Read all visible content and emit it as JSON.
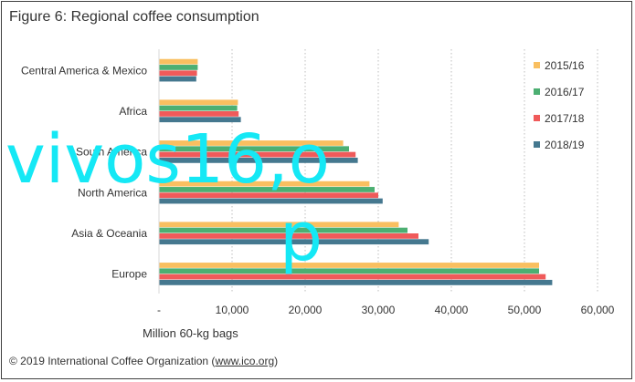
{
  "figure": {
    "title": "Figure 6: Regional coffee consumption",
    "credit_prefix": "© 2019 International Coffee Organization (",
    "credit_link": "www.ico.org",
    "credit_suffix": ")"
  },
  "watermark": {
    "line1": "vivos16,o",
    "line2": "p"
  },
  "chart_data": {
    "type": "bar",
    "orientation": "horizontal",
    "categories": [
      "Central America & Mexico",
      "Africa",
      "South America",
      "North America",
      "Asia & Oceania",
      "Europe"
    ],
    "series": [
      {
        "name": "2015/16",
        "color": "#f9bf60",
        "values": [
          5300,
          10800,
          25200,
          28800,
          32800,
          52000
        ]
      },
      {
        "name": "2016/17",
        "color": "#4caf72",
        "values": [
          5300,
          10700,
          26000,
          29500,
          34000,
          52000
        ]
      },
      {
        "name": "2017/18",
        "color": "#f05a5a",
        "values": [
          5200,
          10900,
          26900,
          30000,
          35500,
          52900
        ]
      },
      {
        "name": "2018/19",
        "color": "#45788f",
        "values": [
          5100,
          11200,
          27200,
          30600,
          36900,
          53800
        ]
      }
    ],
    "xlim": [
      0,
      60000
    ],
    "xticks": [
      "-",
      "10,000",
      "20,000",
      "30,000",
      "40,000",
      "50,000",
      "60,000"
    ],
    "xlabel": "Million 60-kg bags",
    "ylabel": "",
    "grid": "vertical dotted",
    "legend_position": "right"
  }
}
